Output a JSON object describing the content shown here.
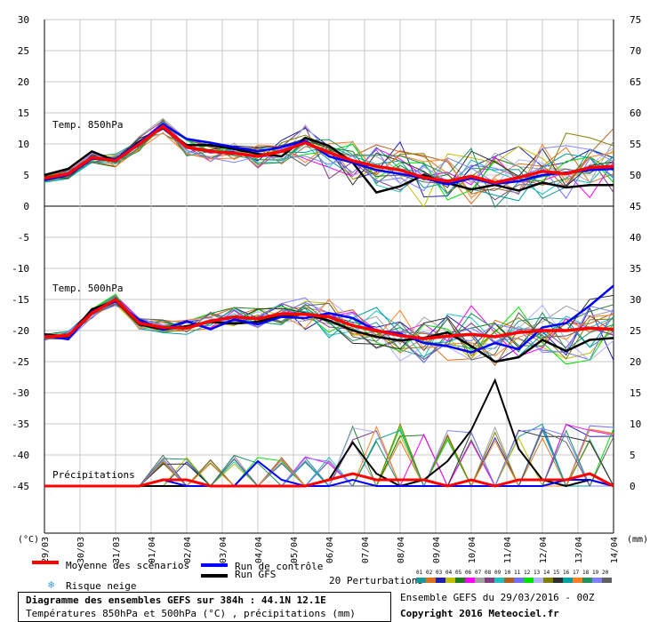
{
  "chart_data": {
    "type": "line",
    "x_labels": [
      "29/03",
      "30/03",
      "31/03",
      "01/04",
      "02/04",
      "03/04",
      "04/04",
      "05/04",
      "06/04",
      "07/04",
      "08/04",
      "09/04",
      "10/04",
      "11/04",
      "12/04",
      "13/04",
      "14/04"
    ],
    "left_axis_ticks": [
      30,
      25,
      20,
      15,
      10,
      5,
      0,
      -5,
      -10,
      -15,
      -20,
      -25,
      -30,
      -35,
      -40,
      -45
    ],
    "right_axis_ticks": [
      75,
      70,
      65,
      60,
      55,
      50,
      45,
      40,
      35,
      30,
      25,
      20,
      15,
      10,
      5,
      0
    ],
    "left_unit": "(°C)",
    "right_unit": "(mm)",
    "section_labels": {
      "t850": "Temp. 850hPa",
      "t500": "Temp. 500hPa",
      "precip": "Précipitations"
    },
    "t850": {
      "mean": [
        4.5,
        5.2,
        7.8,
        7.3,
        10.0,
        12.8,
        9.5,
        8.8,
        8.5,
        8.0,
        8.8,
        10.2,
        8.6,
        7.3,
        6.4,
        5.8,
        4.6,
        4.0,
        4.8,
        3.8,
        4.6,
        5.6,
        5.2,
        6.2,
        6.4
      ],
      "control": [
        4.2,
        5.0,
        7.6,
        7.5,
        10.2,
        13.2,
        10.8,
        10.2,
        9.5,
        8.8,
        9.5,
        10.5,
        8.0,
        7.0,
        5.8,
        5.2,
        4.5,
        3.5,
        4.5,
        3.6,
        4.0,
        5.0,
        5.4,
        5.8,
        6.0
      ],
      "gfs": [
        5.0,
        6.0,
        8.8,
        7.3,
        10.4,
        12.6,
        9.8,
        9.8,
        9.2,
        8.4,
        8.0,
        11.0,
        9.7,
        7.0,
        2.2,
        3.2,
        5.0,
        3.7,
        2.7,
        3.4,
        2.5,
        3.8,
        3.0,
        3.4,
        3.4
      ]
    },
    "t500": {
      "mean": [
        -21.0,
        -20.8,
        -17.2,
        -15.0,
        -18.8,
        -19.5,
        -19.6,
        -18.5,
        -17.8,
        -18.1,
        -17.3,
        -17.4,
        -17.8,
        -19.2,
        -20.0,
        -20.8,
        -21.3,
        -20.9,
        -20.6,
        -21.0,
        -20.3,
        -20.0,
        -20.0,
        -19.6,
        -19.8
      ],
      "control": [
        -20.8,
        -21.4,
        -17.0,
        -15.3,
        -18.3,
        -19.8,
        -18.5,
        -19.8,
        -18.2,
        -19.0,
        -17.8,
        -18.0,
        -17.2,
        -18.0,
        -20.0,
        -20.5,
        -22.0,
        -22.5,
        -23.5,
        -22.0,
        -23.0,
        -19.5,
        -18.8,
        -16.0,
        -12.8
      ],
      "gfs": [
        -20.6,
        -21.0,
        -16.6,
        -15.2,
        -19.0,
        -19.8,
        -19.3,
        -18.6,
        -18.9,
        -18.6,
        -17.6,
        -17.4,
        -18.4,
        -20.0,
        -21.0,
        -21.6,
        -21.2,
        -20.3,
        -22.5,
        -25.0,
        -24.3,
        -21.5,
        -23.3,
        -21.5,
        -21.2
      ]
    },
    "precip_mm": {
      "mean": [
        0,
        0,
        0,
        0,
        0,
        1,
        1,
        0,
        0,
        0,
        0,
        0,
        1,
        2,
        1,
        1,
        1,
        0,
        1,
        0,
        1,
        1,
        1,
        2,
        0
      ],
      "control": [
        0,
        0,
        0,
        0,
        0,
        1,
        0,
        0,
        0,
        4,
        1,
        0,
        0,
        1,
        0,
        0,
        0,
        0,
        0,
        0,
        0,
        0,
        1,
        1,
        0
      ],
      "gfs": [
        0,
        0,
        0,
        0,
        0,
        0,
        0,
        0,
        0,
        0,
        0,
        0,
        1,
        7,
        2,
        0,
        1,
        4,
        9,
        17,
        6,
        1,
        0,
        1,
        0
      ]
    },
    "series": [
      {
        "name": "Moyenne des scénarios",
        "color": "#ff0000"
      },
      {
        "name": "Run de contrôle",
        "color": "#0000ff"
      },
      {
        "name": "Run GFS",
        "color": "#000000"
      }
    ],
    "perturbation_colors": [
      "#1a9a9a",
      "#e07020",
      "#2020b0",
      "#c0c000",
      "#208020",
      "#ff00ff",
      "#a0a0a0",
      "#804080",
      "#20c0c0",
      "#b06020",
      "#7070ff",
      "#00e000",
      "#b0b0ff",
      "#808000",
      "#303030",
      "#00a0a0",
      "#ff8020",
      "#209060",
      "#8080ff",
      "#606060"
    ]
  },
  "legend": {
    "mean_label": "Moyenne des scénarios",
    "control_label": "Run de contrôle",
    "gfs_label": "Run GFS",
    "snow_label": "Risque neige",
    "perturbations_label": "20 Perturbations",
    "perturbation_numbers": [
      "01",
      "02",
      "03",
      "04",
      "05",
      "06",
      "07",
      "08",
      "09",
      "10",
      "11",
      "12",
      "13",
      "14",
      "15",
      "16",
      "17",
      "18",
      "19",
      "20"
    ]
  },
  "footer": {
    "title": "Diagramme des ensembles GEFS sur 384h : 44.1N 12.1E",
    "subtitle": "Températures 850hPa et 500hPa (°C) , précipitations (mm)",
    "run": "Ensemble GEFS du 29/03/2016 - 00Z",
    "copyright": "Copyright 2016 Meteociel.fr"
  },
  "colors": {
    "mean": "#ff0000",
    "control": "#0000ff",
    "gfs": "#000000",
    "grid": "#c8c8c8",
    "snow": "#3aa0e0"
  }
}
